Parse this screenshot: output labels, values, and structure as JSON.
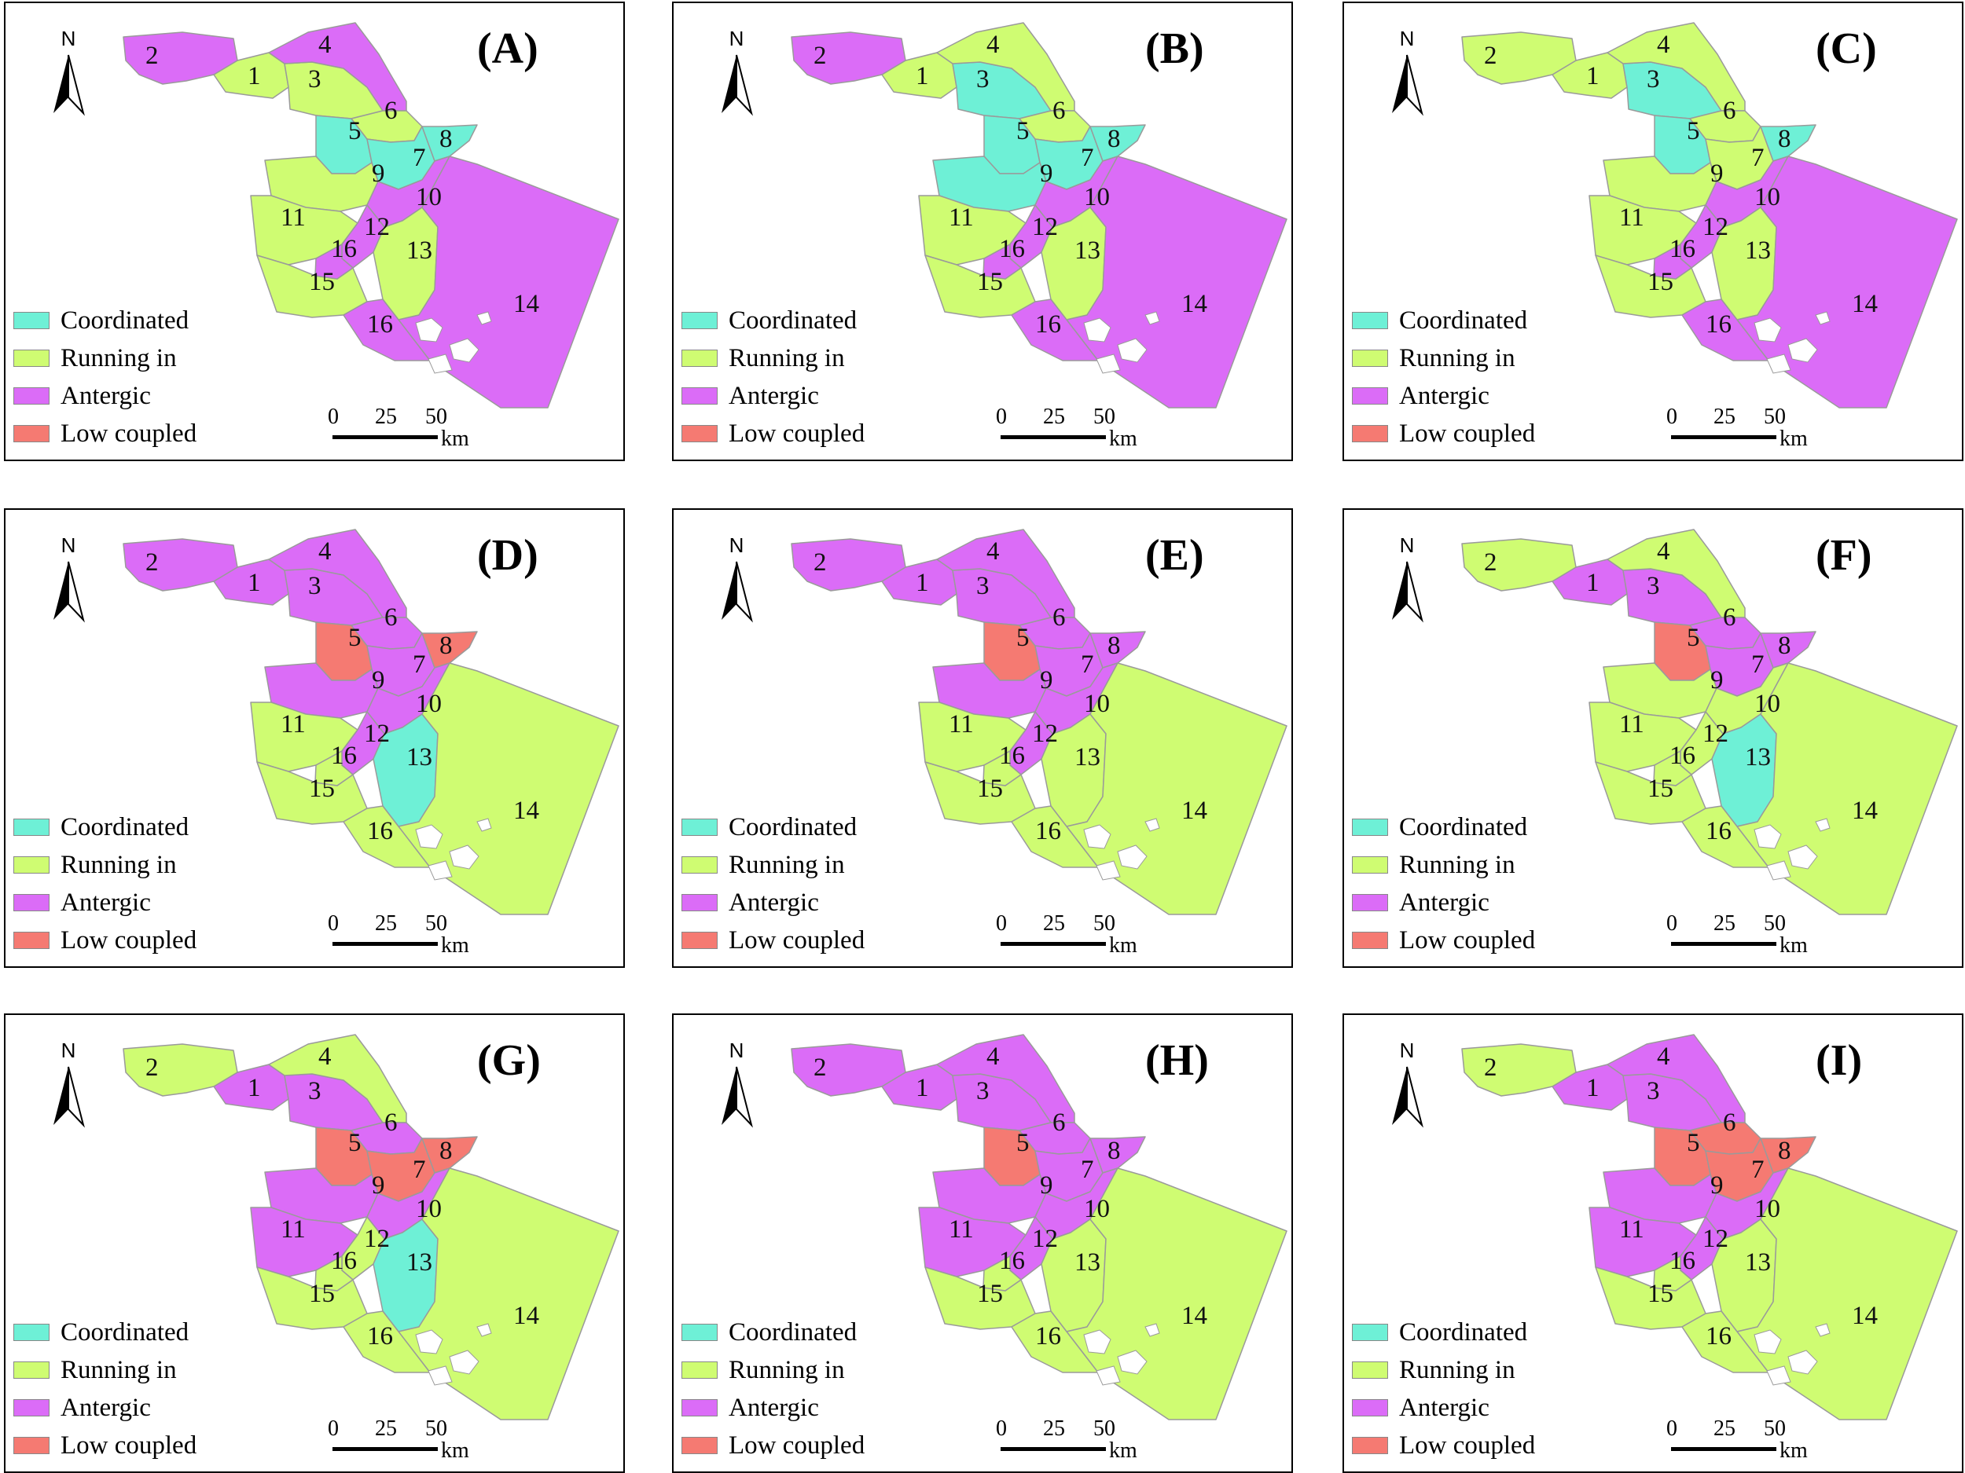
{
  "legend": {
    "items": [
      {
        "label": "Coordinated",
        "color": "#6ef0d6"
      },
      {
        "label": "Running in",
        "color": "#cffc72"
      },
      {
        "label": "Antergic",
        "color": "#db6cf7"
      },
      {
        "label": "Low coupled",
        "color": "#f57a72"
      }
    ]
  },
  "north_label": "N",
  "scale": {
    "ticks": [
      "0",
      "25",
      "50"
    ],
    "unit": "km"
  },
  "region_ids": [
    "1",
    "2",
    "3",
    "4",
    "5",
    "6",
    "7",
    "8",
    "9",
    "10",
    "11",
    "12",
    "13",
    "14",
    "15",
    "16"
  ],
  "panels": [
    {
      "label": "(A)",
      "regions": {
        "1": "running",
        "2": "antergic",
        "3": "running",
        "4": "antergic",
        "5": "coordinated",
        "6": "running",
        "7": "coordinated",
        "8": "coordinated",
        "9": "running",
        "10": "antergic",
        "11": "running",
        "12": "antergic",
        "13": "running",
        "14": "antergic",
        "15": "running",
        "16": "antergic"
      }
    },
    {
      "label": "(B)",
      "regions": {
        "1": "running",
        "2": "antergic",
        "3": "coordinated",
        "4": "running",
        "5": "coordinated",
        "6": "running",
        "7": "coordinated",
        "8": "coordinated",
        "9": "coordinated",
        "10": "antergic",
        "11": "running",
        "12": "antergic",
        "13": "running",
        "14": "antergic",
        "15": "running",
        "16": "antergic"
      }
    },
    {
      "label": "(C)",
      "regions": {
        "1": "running",
        "2": "running",
        "3": "coordinated",
        "4": "running",
        "5": "coordinated",
        "6": "running",
        "7": "running",
        "8": "coordinated",
        "9": "running",
        "10": "antergic",
        "11": "running",
        "12": "antergic",
        "13": "running",
        "14": "antergic",
        "15": "running",
        "16": "antergic"
      }
    },
    {
      "label": "(D)",
      "regions": {
        "1": "antergic",
        "2": "antergic",
        "3": "antergic",
        "4": "antergic",
        "5": "low",
        "6": "antergic",
        "7": "antergic",
        "8": "low",
        "9": "antergic",
        "10": "antergic",
        "11": "running",
        "12": "antergic",
        "13": "coordinated",
        "14": "running",
        "15": "running",
        "16": "running"
      }
    },
    {
      "label": "(E)",
      "regions": {
        "1": "antergic",
        "2": "antergic",
        "3": "antergic",
        "4": "antergic",
        "5": "low",
        "6": "antergic",
        "7": "antergic",
        "8": "antergic",
        "9": "antergic",
        "10": "antergic",
        "11": "running",
        "12": "antergic",
        "13": "running",
        "14": "running",
        "15": "running",
        "16": "running"
      }
    },
    {
      "label": "(F)",
      "regions": {
        "1": "antergic",
        "2": "running",
        "3": "antergic",
        "4": "running",
        "5": "low",
        "6": "antergic",
        "7": "antergic",
        "8": "antergic",
        "9": "running",
        "10": "running",
        "11": "running",
        "12": "running",
        "13": "coordinated",
        "14": "running",
        "15": "running",
        "16": "running"
      }
    },
    {
      "label": "(G)",
      "regions": {
        "1": "antergic",
        "2": "running",
        "3": "antergic",
        "4": "running",
        "5": "low",
        "6": "antergic",
        "7": "low",
        "8": "low",
        "9": "antergic",
        "10": "antergic",
        "11": "antergic",
        "12": "running",
        "13": "coordinated",
        "14": "running",
        "15": "running",
        "16": "running"
      }
    },
    {
      "label": "(H)",
      "regions": {
        "1": "antergic",
        "2": "antergic",
        "3": "antergic",
        "4": "antergic",
        "5": "low",
        "6": "antergic",
        "7": "antergic",
        "8": "antergic",
        "9": "antergic",
        "10": "antergic",
        "11": "antergic",
        "12": "antergic",
        "13": "running",
        "14": "running",
        "15": "running",
        "16": "running"
      }
    },
    {
      "label": "(I)",
      "regions": {
        "1": "antergic",
        "2": "running",
        "3": "antergic",
        "4": "antergic",
        "5": "low",
        "6": "low",
        "7": "low",
        "8": "low",
        "9": "antergic",
        "10": "antergic",
        "11": "antergic",
        "12": "antergic",
        "13": "running",
        "14": "running",
        "15": "running",
        "16": "running"
      }
    }
  ],
  "class_colors": {
    "coordinated": "#6ef0d6",
    "running": "#cffc72",
    "antergic": "#db6cf7",
    "low": "#f57a72"
  }
}
